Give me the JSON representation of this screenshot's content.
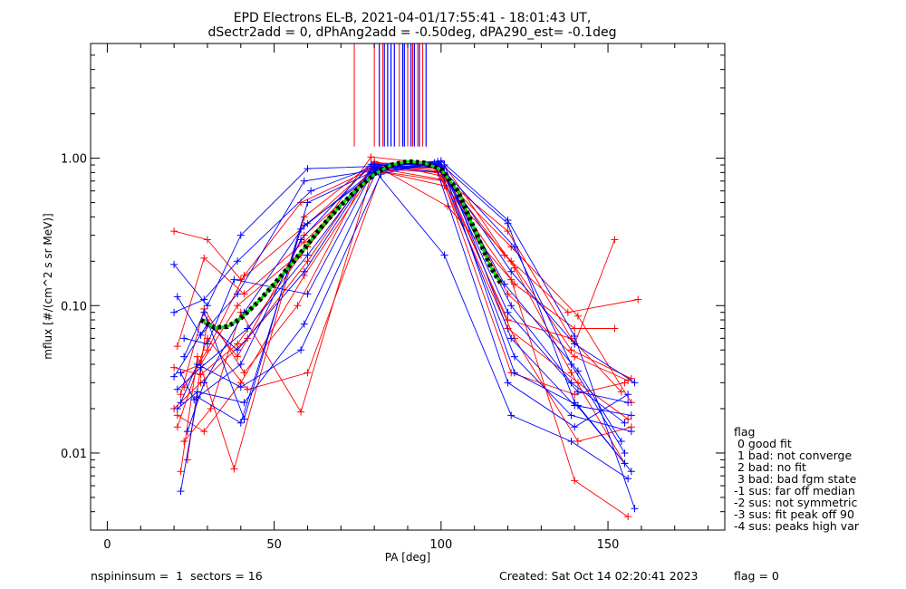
{
  "chart_data": {
    "type": "scatter",
    "title": "EPD Electrons EL-B, 2021-04-01/17:55:41 - 18:01:43 UT,",
    "subtitle": "dSectr2add = 0, dPhAng2add = -0.50deg, dPA290_est=  -0.1deg",
    "xlabel": "PA [deg]",
    "ylabel": "mflux [#/(cm^2 s sr MeV)]",
    "xlim": [
      -5,
      185
    ],
    "ylim": [
      0.003,
      6.0
    ],
    "yscale": "log",
    "x_ticks": [
      0,
      50,
      100,
      150
    ],
    "y_ticks": [
      {
        "value": 1.0,
        "label": "1.00"
      },
      {
        "value": 0.1,
        "label": "0.10"
      },
      {
        "value": 0.01,
        "label": "0.01"
      }
    ],
    "colors": {
      "red": "#ff0000",
      "blue": "#0000ff",
      "fit": "#00dd00",
      "fit_outline": "#000000"
    },
    "fit_curve": {
      "x": [
        28,
        32,
        36,
        40,
        45,
        50,
        55,
        60,
        65,
        70,
        75,
        80,
        85,
        90,
        95,
        100,
        105,
        110,
        115,
        118
      ],
      "y": [
        0.08,
        0.071,
        0.072,
        0.082,
        0.105,
        0.14,
        0.19,
        0.26,
        0.36,
        0.48,
        0.62,
        0.78,
        0.9,
        0.95,
        0.93,
        0.84,
        0.6,
        0.33,
        0.18,
        0.14
      ]
    },
    "peak_markers": {
      "red_x": [
        74,
        80,
        82.5,
        87.5,
        90,
        91.5,
        93,
        94.5
      ],
      "blue_x": [
        81.5,
        83,
        84,
        85,
        86,
        88.5,
        89,
        91,
        92,
        93.5,
        95.5
      ],
      "y_bottom": 1.2
    },
    "series": [
      {
        "color": "red",
        "x": [
          20,
          30,
          40,
          60,
          80,
          100,
          120,
          140,
          156
        ],
        "y": [
          0.32,
          0.28,
          0.15,
          0.36,
          0.92,
          0.88,
          0.12,
          0.045,
          0.031
        ]
      },
      {
        "color": "red",
        "x": [
          21,
          29,
          41,
          59,
          81,
          99,
          121,
          141,
          157
        ],
        "y": [
          0.053,
          0.21,
          0.12,
          0.27,
          0.85,
          0.8,
          0.25,
          0.085,
          0.022
        ]
      },
      {
        "color": "red",
        "x": [
          20,
          28,
          39,
          58,
          79,
          101,
          122,
          139,
          155
        ],
        "y": [
          0.038,
          0.034,
          0.055,
          0.22,
          1.02,
          0.9,
          0.18,
          0.035,
          0.0085
        ]
      },
      {
        "color": "red",
        "x": [
          22,
          27,
          38,
          59,
          80,
          100,
          120,
          140,
          152
        ],
        "y": [
          0.0075,
          0.045,
          0.0078,
          0.4,
          0.95,
          0.76,
          0.32,
          0.055,
          0.28
        ]
      },
      {
        "color": "red",
        "x": [
          21,
          30,
          42,
          60,
          82,
          98,
          119,
          138,
          159
        ],
        "y": [
          0.015,
          0.06,
          0.027,
          0.035,
          0.8,
          0.93,
          0.22,
          0.09,
          0.11
        ]
      },
      {
        "color": "red",
        "x": [
          23,
          31,
          40,
          58,
          80,
          102,
          121,
          140,
          156
        ],
        "y": [
          0.012,
          0.02,
          0.09,
          0.019,
          0.9,
          0.47,
          0.15,
          0.0065,
          0.0037
        ]
      },
      {
        "color": "red",
        "x": [
          22,
          29,
          41,
          57,
          79,
          100,
          122,
          141,
          157
        ],
        "y": [
          0.025,
          0.095,
          0.035,
          0.1,
          0.88,
          0.85,
          0.06,
          0.012,
          0.015
        ]
      },
      {
        "color": "red",
        "x": [
          24,
          30,
          39,
          59,
          81,
          101,
          120,
          139,
          154
        ],
        "y": [
          0.009,
          0.08,
          0.045,
          0.3,
          0.82,
          0.7,
          0.08,
          0.06,
          0.026
        ]
      },
      {
        "color": "red",
        "x": [
          20,
          28,
          42,
          60,
          80,
          99,
          121,
          140,
          155
        ],
        "y": [
          0.02,
          0.03,
          0.06,
          0.2,
          0.93,
          0.9,
          0.035,
          0.025,
          0.03
        ]
      },
      {
        "color": "red",
        "x": [
          23,
          30,
          41,
          58,
          80,
          100,
          122,
          140,
          152
        ],
        "y": [
          0.028,
          0.05,
          0.16,
          0.5,
          0.86,
          0.72,
          0.14,
          0.07,
          0.07
        ]
      },
      {
        "color": "red",
        "x": [
          21,
          29,
          40,
          59,
          81,
          99,
          120,
          141,
          156
        ],
        "y": [
          0.018,
          0.014,
          0.03,
          0.16,
          0.9,
          0.82,
          0.07,
          0.03,
          0.017
        ]
      },
      {
        "color": "red",
        "x": [
          22,
          28,
          39,
          60,
          79,
          101,
          121,
          139,
          157
        ],
        "y": [
          0.035,
          0.04,
          0.1,
          0.25,
          0.84,
          0.65,
          0.2,
          0.05,
          0.032
        ]
      },
      {
        "color": "blue",
        "x": [
          20,
          30,
          40,
          60,
          80,
          100,
          120,
          140,
          158
        ],
        "y": [
          0.19,
          0.1,
          0.3,
          0.85,
          0.88,
          0.96,
          0.38,
          0.062,
          0.0042
        ]
      },
      {
        "color": "blue",
        "x": [
          21,
          28,
          39,
          59,
          80,
          101,
          121,
          139,
          156
        ],
        "y": [
          0.115,
          0.063,
          0.12,
          0.7,
          0.83,
          0.22,
          0.018,
          0.012,
          0.0067
        ]
      },
      {
        "color": "blue",
        "x": [
          22,
          27,
          40,
          58,
          81,
          99,
          120,
          140,
          155
        ],
        "y": [
          0.0055,
          0.024,
          0.016,
          0.33,
          0.86,
          0.95,
          0.36,
          0.022,
          0.0085
        ]
      },
      {
        "color": "blue",
        "x": [
          23,
          29,
          41,
          60,
          79,
          100,
          122,
          141,
          157
        ],
        "y": [
          0.045,
          0.09,
          0.017,
          0.5,
          0.8,
          0.94,
          0.035,
          0.021,
          0.0075
        ]
      },
      {
        "color": "blue",
        "x": [
          20,
          30,
          39,
          59,
          80,
          100,
          121,
          139,
          155
        ],
        "y": [
          0.033,
          0.075,
          0.05,
          0.17,
          0.9,
          0.86,
          0.1,
          0.03,
          0.016
        ]
      },
      {
        "color": "blue",
        "x": [
          22,
          27,
          40,
          58,
          82,
          98,
          120,
          140,
          156
        ],
        "y": [
          0.022,
          0.04,
          0.028,
          0.05,
          0.78,
          0.93,
          0.03,
          0.015,
          0.025
        ]
      },
      {
        "color": "blue",
        "x": [
          21,
          28,
          42,
          60,
          80,
          100,
          119,
          141,
          154
        ],
        "y": [
          0.027,
          0.038,
          0.07,
          0.22,
          0.87,
          0.88,
          0.14,
          0.036,
          0.012
        ]
      },
      {
        "color": "blue",
        "x": [
          24,
          29,
          41,
          59,
          81,
          101,
          121,
          140,
          157
        ],
        "y": [
          0.014,
          0.03,
          0.09,
          0.35,
          0.82,
          0.9,
          0.06,
          0.021,
          0.018
        ]
      },
      {
        "color": "blue",
        "x": [
          23,
          30,
          38,
          60,
          80,
          99,
          122,
          139,
          155
        ],
        "y": [
          0.06,
          0.055,
          0.15,
          0.12,
          0.85,
          0.91,
          0.25,
          0.04,
          0.01
        ]
      },
      {
        "color": "blue",
        "x": [
          22,
          26,
          40,
          58,
          79,
          100,
          120,
          141,
          156
        ],
        "y": [
          0.035,
          0.023,
          0.04,
          0.28,
          0.91,
          0.9,
          0.09,
          0.026,
          0.022
        ]
      },
      {
        "color": "blue",
        "x": [
          20,
          29,
          39,
          61,
          80,
          101,
          121,
          140,
          158
        ],
        "y": [
          0.09,
          0.11,
          0.2,
          0.6,
          0.88,
          0.8,
          0.17,
          0.055,
          0.03
        ]
      },
      {
        "color": "blue",
        "x": [
          21,
          27,
          41,
          59,
          81,
          99,
          122,
          139,
          157
        ],
        "y": [
          0.02,
          0.026,
          0.022,
          0.075,
          0.84,
          0.92,
          0.045,
          0.018,
          0.014
        ]
      }
    ]
  },
  "legend": {
    "title": "flag",
    "items": [
      " 0 good fit",
      " 1 bad: not converge",
      " 2 bad: no fit",
      " 3 bad: bad fgm state",
      "-1 sus: far off median",
      "-2 sus: not symmetric",
      "-3 sus: fit peak off 90",
      "-4 sus: peaks high var"
    ]
  },
  "footer": {
    "left": "nspininsum =  1  sectors = 16",
    "created": "Created: Sat Oct 14 02:20:41 2023",
    "flag": "flag = 0"
  }
}
